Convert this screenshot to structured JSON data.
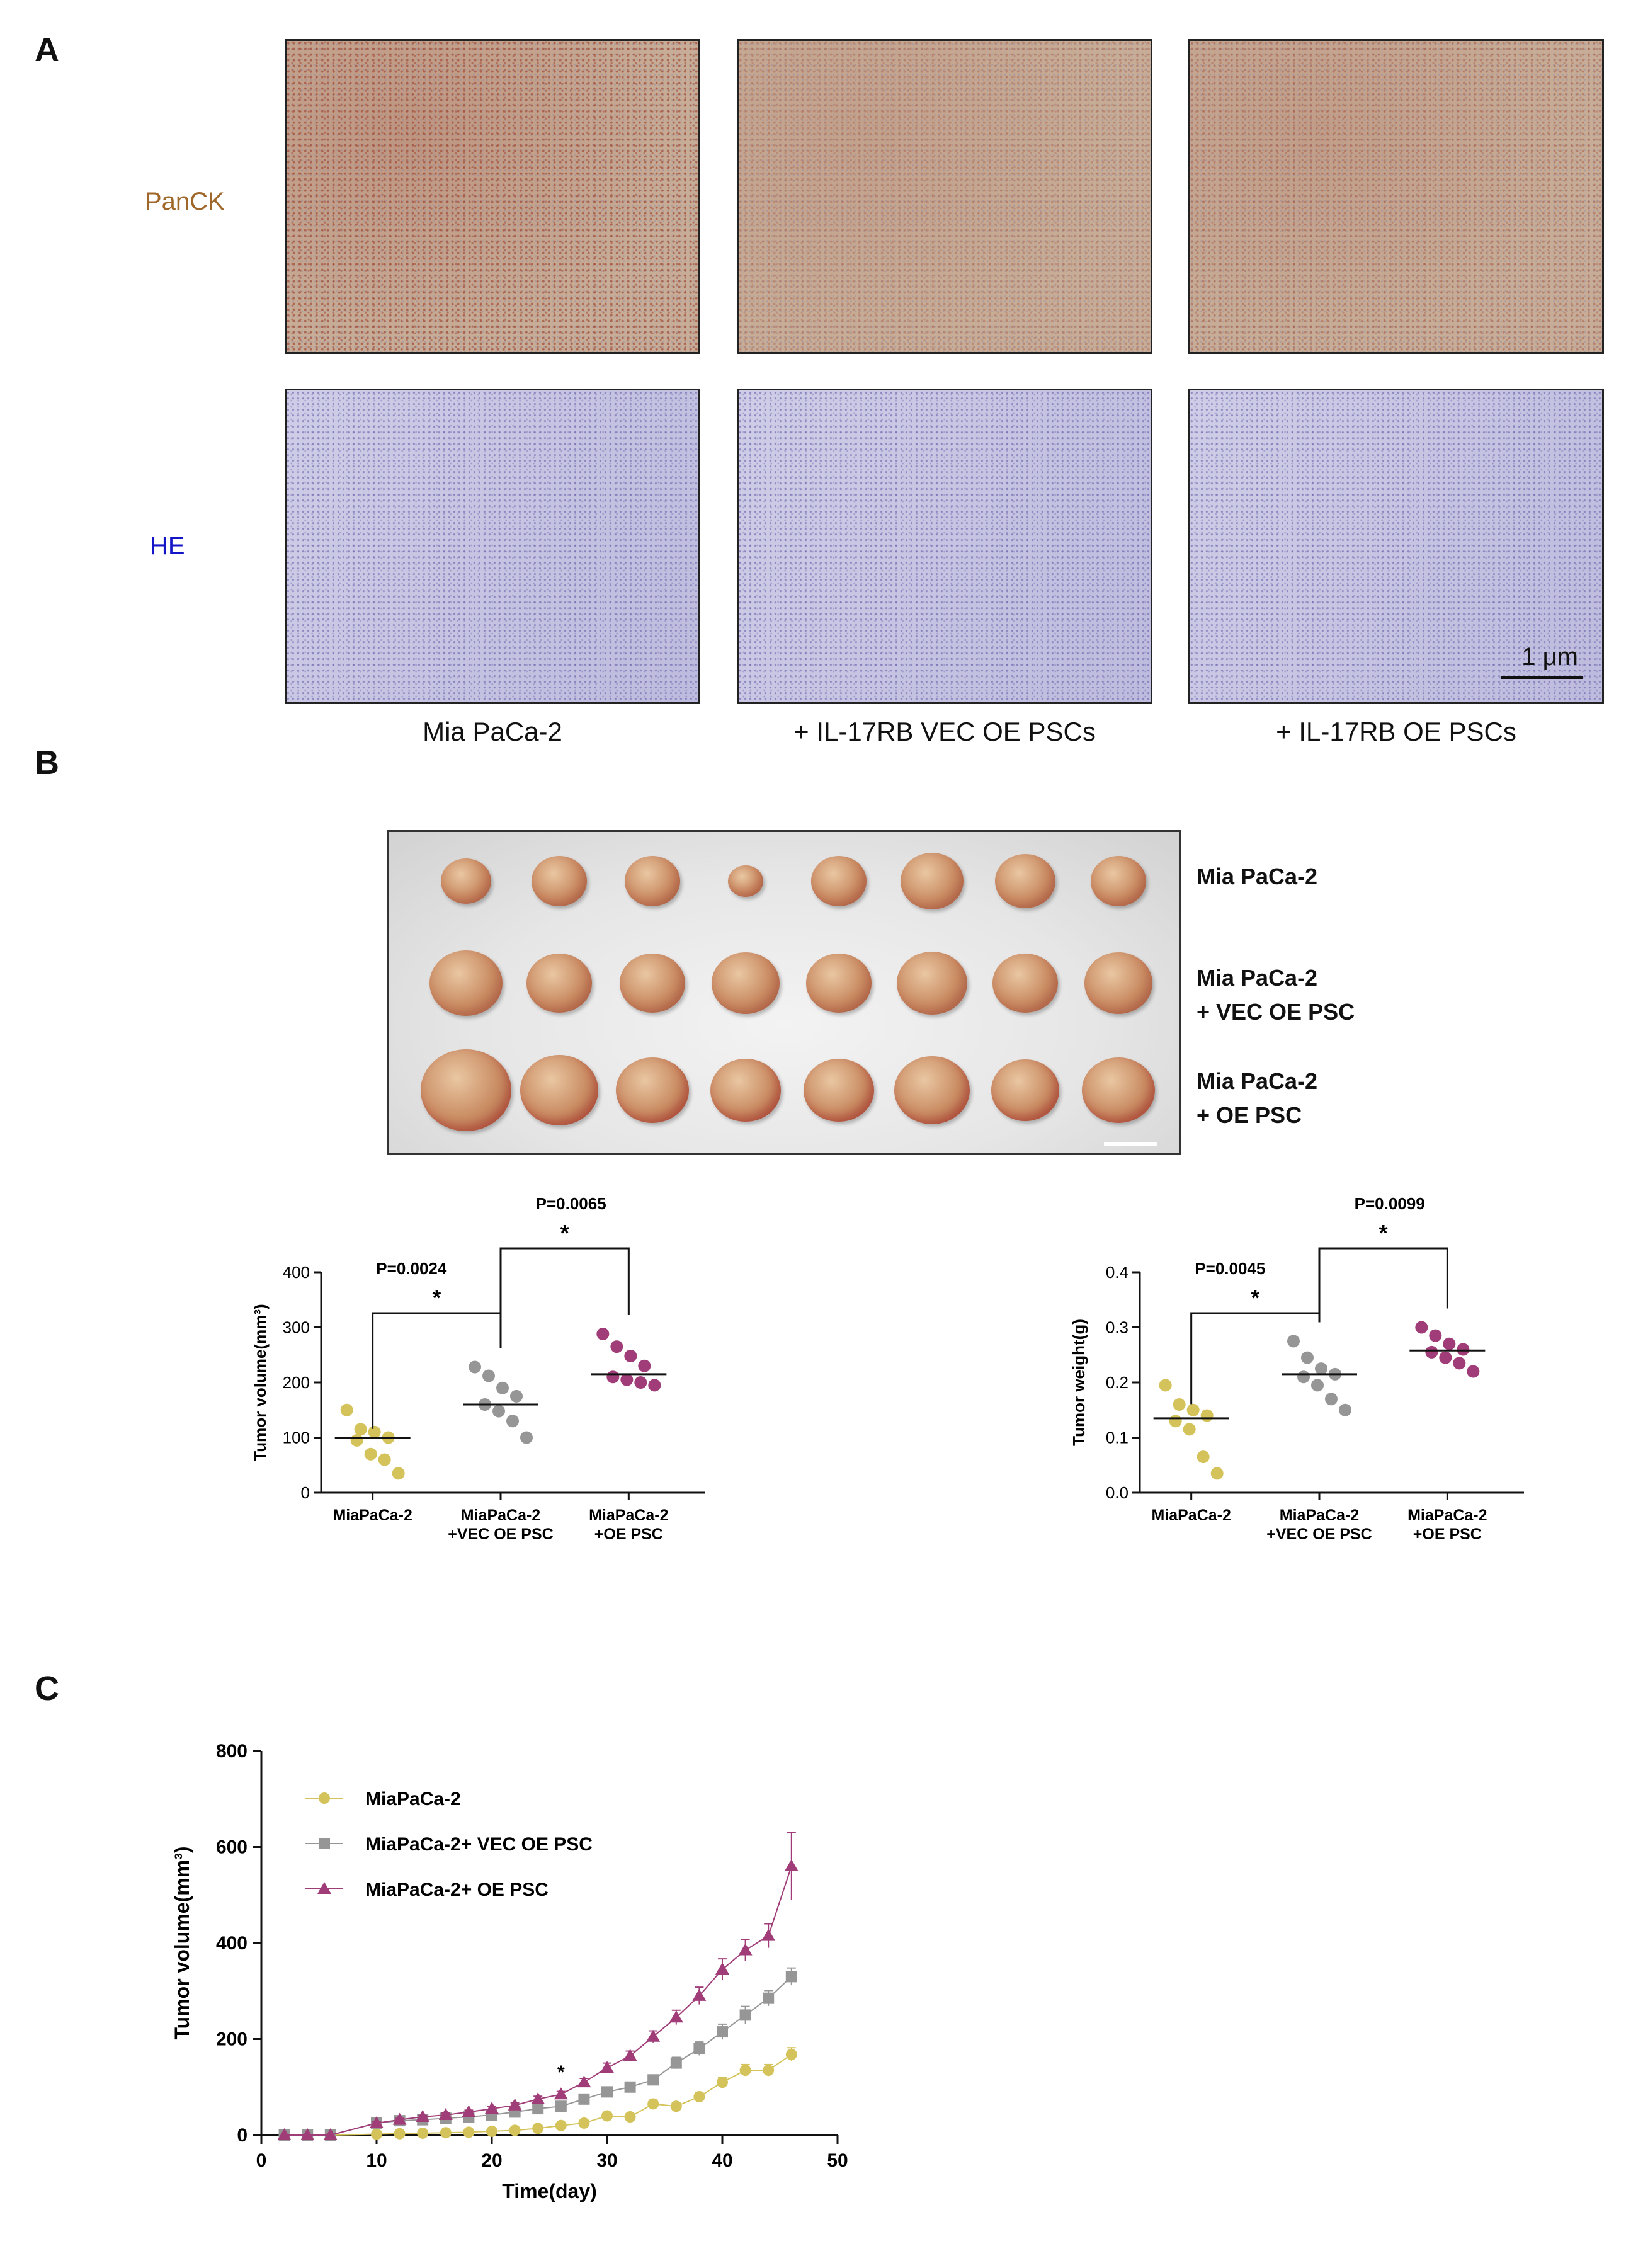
{
  "panels": {
    "A": {
      "letter": "A",
      "rows": [
        {
          "label": "PanCK",
          "color": "#a0672a"
        },
        {
          "label": "HE",
          "color": "#1515c8"
        }
      ],
      "columns": [
        "Mia PaCa-2",
        "+ IL-17RB VEC OE PSCs",
        "+ IL-17RB OE PSCs"
      ],
      "scale_bar": "1 μm",
      "stain_colors": {
        "panck_base": "#c7ad97",
        "panck_dark": "#a24a36",
        "he_base": "#c6c4e2",
        "he_dot": "#5d56a6"
      }
    },
    "B": {
      "letter": "B",
      "photo_labels": [
        {
          "line1": "Mia PaCa-2",
          "line2": ""
        },
        {
          "line1": "Mia PaCa-2",
          "line2": "+ VEC OE PSC"
        },
        {
          "line1": "Mia PaCa-2",
          "line2": "+ OE PSC"
        }
      ]
    },
    "C": {
      "letter": "C"
    }
  },
  "colors": {
    "mia": "#d4c35a",
    "vec": "#969696",
    "oe": "#a03c78"
  },
  "chart_data": [
    {
      "type": "scatter",
      "name_id": "volume",
      "ylabel": "Tumor volume(mm³)",
      "ylim": [
        0,
        400
      ],
      "yticks": [
        0,
        100,
        200,
        300,
        400
      ],
      "categories": [
        "MiaPaCa-2",
        "MiaPaCa-2\n+VEC OE PSC",
        "MiaPaCa-2\n+OE PSC"
      ],
      "series": [
        {
          "values": [
            150,
            115,
            110,
            100,
            95,
            70,
            60,
            35
          ],
          "median": 100
        },
        {
          "values": [
            228,
            212,
            190,
            175,
            160,
            148,
            130,
            100
          ],
          "median": 160
        },
        {
          "values": [
            288,
            265,
            248,
            230,
            210,
            205,
            200,
            195
          ],
          "median": 215
        }
      ],
      "brackets": [
        {
          "from": 0,
          "to": 1,
          "p": "P=0.0024",
          "star": "*"
        },
        {
          "from": 1,
          "to": 2,
          "p": "P=0.0065",
          "star": "*"
        }
      ]
    },
    {
      "type": "scatter",
      "name_id": "weight",
      "ylabel": "Tumor weight(g)",
      "ylim": [
        0,
        0.4
      ],
      "yticks": [
        0.0,
        0.1,
        0.2,
        0.3,
        0.4
      ],
      "categories": [
        "MiaPaCa-2",
        "MiaPaCa-2\n+VEC OE PSC",
        "MiaPaCa-2\n+OE PSC"
      ],
      "series": [
        {
          "values": [
            0.195,
            0.16,
            0.15,
            0.14,
            0.13,
            0.115,
            0.065,
            0.035
          ],
          "median": 0.135
        },
        {
          "values": [
            0.275,
            0.245,
            0.225,
            0.215,
            0.21,
            0.195,
            0.17,
            0.15
          ],
          "median": 0.215
        },
        {
          "values": [
            0.3,
            0.285,
            0.27,
            0.26,
            0.255,
            0.245,
            0.235,
            0.22
          ],
          "median": 0.258
        }
      ],
      "brackets": [
        {
          "from": 0,
          "to": 1,
          "p": "P=0.0045",
          "star": "*"
        },
        {
          "from": 1,
          "to": 2,
          "p": "P=0.0099",
          "star": "*"
        }
      ]
    },
    {
      "type": "line",
      "name_id": "growth",
      "xlabel": "Time(day)",
      "ylabel": "Tumor volume(mm³)",
      "xlim": [
        0,
        50
      ],
      "ylim": [
        0,
        800
      ],
      "xticks": [
        0,
        10,
        20,
        30,
        40,
        50
      ],
      "yticks": [
        0,
        200,
        400,
        600,
        800
      ],
      "annotation": {
        "x": 26,
        "y": 118,
        "text": "*"
      },
      "series": [
        {
          "name": "MiaPaCa-2",
          "marker": "circle",
          "x": [
            2,
            4,
            6,
            10,
            12,
            14,
            16,
            18,
            20,
            22,
            24,
            26,
            28,
            30,
            32,
            34,
            36,
            38,
            40,
            42,
            44,
            46
          ],
          "y": [
            0,
            0,
            0,
            2,
            3,
            4,
            5,
            6,
            8,
            10,
            14,
            20,
            25,
            40,
            38,
            65,
            60,
            80,
            110,
            135,
            135,
            168
          ],
          "err": [
            0,
            0,
            0,
            1,
            1,
            1,
            1,
            2,
            2,
            3,
            3,
            4,
            4,
            5,
            5,
            8,
            8,
            8,
            10,
            12,
            12,
            14
          ]
        },
        {
          "name": "MiaPaCa-2+ VEC OE PSC",
          "marker": "square",
          "x": [
            2,
            4,
            6,
            10,
            12,
            14,
            16,
            18,
            20,
            22,
            24,
            26,
            28,
            30,
            32,
            34,
            36,
            38,
            40,
            42,
            44,
            46
          ],
          "y": [
            0,
            0,
            0,
            25,
            30,
            32,
            35,
            38,
            42,
            48,
            55,
            60,
            75,
            90,
            100,
            115,
            150,
            180,
            215,
            250,
            285,
            330
          ],
          "err": [
            0,
            0,
            0,
            3,
            3,
            3,
            4,
            4,
            5,
            5,
            6,
            6,
            7,
            8,
            9,
            10,
            12,
            14,
            16,
            18,
            16,
            18
          ]
        },
        {
          "name": "MiaPaCa-2+ OE PSC",
          "marker": "triangle",
          "x": [
            2,
            4,
            6,
            10,
            12,
            14,
            16,
            18,
            20,
            22,
            24,
            26,
            28,
            30,
            32,
            34,
            36,
            38,
            40,
            42,
            44,
            46
          ],
          "y": [
            0,
            0,
            0,
            25,
            32,
            38,
            42,
            48,
            55,
            62,
            75,
            85,
            110,
            140,
            165,
            205,
            245,
            290,
            345,
            385,
            415,
            560
          ],
          "err": [
            0,
            0,
            0,
            3,
            3,
            3,
            4,
            4,
            5,
            5,
            6,
            6,
            8,
            10,
            10,
            12,
            15,
            18,
            22,
            22,
            25,
            70
          ]
        }
      ]
    }
  ]
}
